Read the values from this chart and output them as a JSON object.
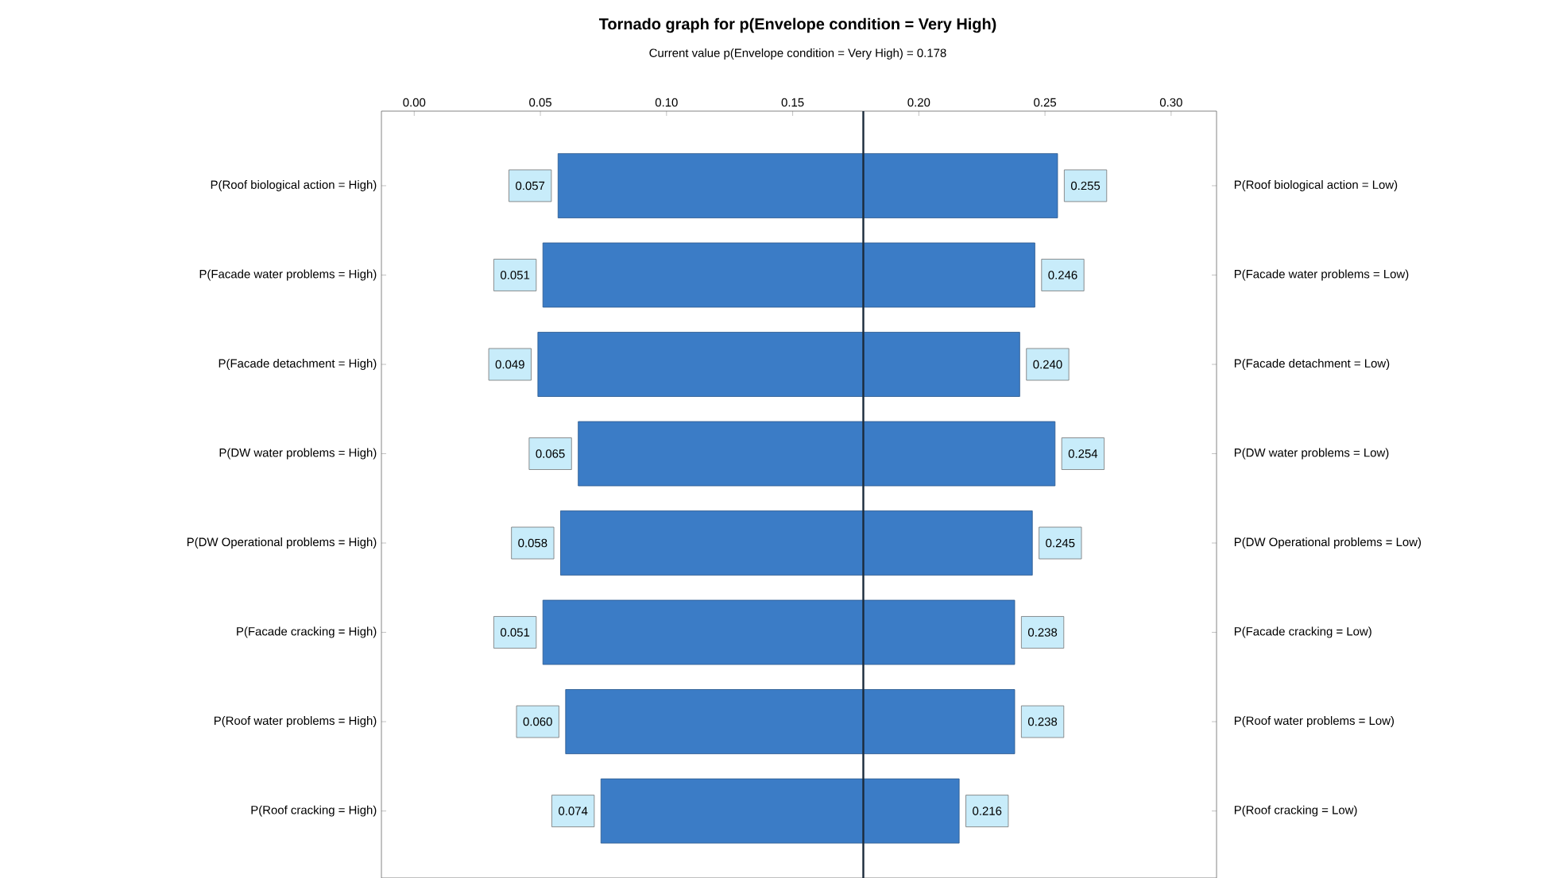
{
  "chart_data": {
    "type": "bar",
    "orientation": "horizontal",
    "title": "Tornado graph for p(Envelope condition = Very High)",
    "subtitle": "Current value p(Envelope condition = Very High) = 0.178",
    "categories": [
      "P(Roof biological action = High)",
      "P(Facade water problems = High)",
      "P(Facade detachment = High)",
      "P(DW water problems = High)",
      "P(DW Operational problems = High)",
      "P(Facade cracking = High)",
      "P(Roof water problems = High)",
      "P(Roof cracking = High)"
    ],
    "base": [
      0.057,
      0.051,
      0.049,
      0.065,
      0.058,
      0.051,
      0.06,
      0.074
    ],
    "values": [
      0.198,
      0.195,
      0.191,
      0.189,
      0.187,
      0.187,
      0.178,
      0.142
    ],
    "color": "#3b7cc6",
    "xlim": [
      -0.013,
      0.318
    ],
    "xticks": [
      {
        "value": 0,
        "label": "0.00"
      },
      {
        "value": 0.05,
        "label": "0.05"
      },
      {
        "value": 0.1,
        "label": "0.10"
      },
      {
        "value": 0.15,
        "label": "0.15"
      },
      {
        "value": 0.2,
        "label": "0.20"
      },
      {
        "value": 0.25,
        "label": "0.25"
      },
      {
        "value": 0.3,
        "label": "0.30"
      }
    ],
    "ref_lines": [
      {
        "axis": "x",
        "value": 0.178,
        "color": "#1a2a3a"
      }
    ],
    "annotations": [
      {
        "text": "0.057",
        "x": 0.057
      },
      {
        "text": "0.255",
        "x": 0.255
      },
      {
        "text": "0.051",
        "x": 0.051
      },
      {
        "text": "0.246",
        "x": 0.246
      },
      {
        "text": "0.049",
        "x": 0.049
      },
      {
        "text": "0.240",
        "x": 0.24
      },
      {
        "text": "0.065",
        "x": 0.065
      },
      {
        "text": "0.254",
        "x": 0.254
      },
      {
        "text": "0.058",
        "x": 0.058
      },
      {
        "text": "0.245",
        "x": 0.245
      },
      {
        "text": "0.051",
        "x": 0.051
      },
      {
        "text": "0.238",
        "x": 0.238
      },
      {
        "text": "0.060",
        "x": 0.06
      },
      {
        "text": "0.238",
        "x": 0.238
      },
      {
        "text": "0.074",
        "x": 0.074
      },
      {
        "text": "0.216",
        "x": 0.216
      },
      "P(Roof biological action = Low)",
      "P(Facade water problems = Low)",
      "P(Facade detachment = Low)",
      "P(DW water problems = Low)",
      "P(DW Operational problems = Low)",
      "P(Facade cracking = Low)",
      "P(Roof water problems = Low)",
      "P(Roof cracking = Low)"
    ]
  }
}
